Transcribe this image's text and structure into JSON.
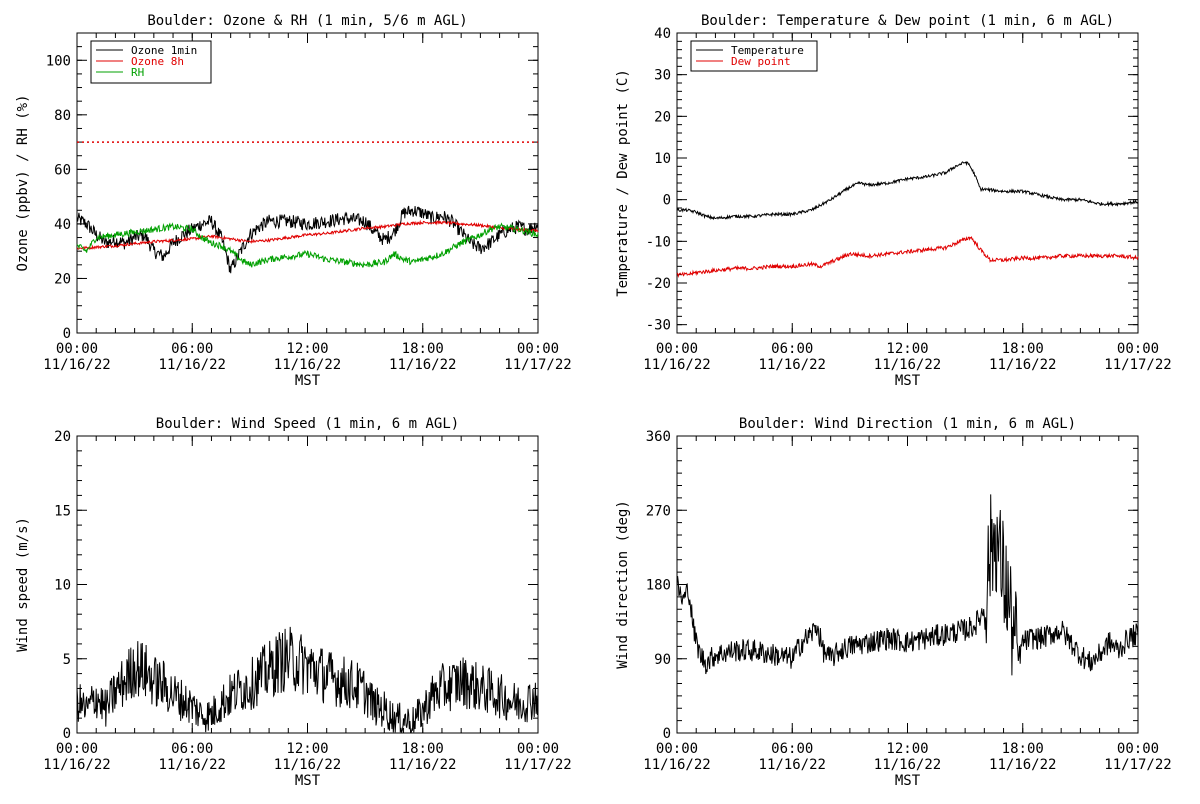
{
  "chart_data": [
    {
      "id": "ozone",
      "type": "line",
      "title": "Boulder: Ozone & RH (1 min, 5/6 m AGL)",
      "xlabel": "MST",
      "ylabel": "Ozone (ppbv) / RH (%)",
      "xlim": [
        0,
        24
      ],
      "ylim": [
        0,
        110
      ],
      "x_ticks": [
        {
          "value": 0,
          "time": "00:00",
          "date": "11/16/22"
        },
        {
          "value": 6,
          "time": "06:00",
          "date": "11/16/22"
        },
        {
          "value": 12,
          "time": "12:00",
          "date": "11/16/22"
        },
        {
          "value": 18,
          "time": "18:00",
          "date": "11/16/22"
        },
        {
          "value": 24,
          "time": "00:00",
          "date": "11/17/22"
        }
      ],
      "y_ticks": [
        0,
        20,
        40,
        60,
        80,
        100
      ],
      "y_minor_step": 5,
      "legend_position": "top-left",
      "hline": {
        "value": 70,
        "color": "#e00000",
        "style": "dotted"
      },
      "series": [
        {
          "name": "Ozone 1min",
          "color": "#000000",
          "x": [
            0,
            0.5,
            1,
            1.5,
            2,
            2.5,
            3,
            3.5,
            4,
            4.5,
            5,
            5.5,
            6,
            6.5,
            7,
            7.5,
            7.8,
            8,
            8.3,
            8.6,
            9,
            9.5,
            10,
            11,
            12,
            13,
            14,
            15,
            15.5,
            16,
            16.5,
            17,
            17.5,
            18,
            18.5,
            19,
            19.5,
            20,
            20.5,
            21,
            21.5,
            22,
            22.5,
            23,
            23.5,
            24
          ],
          "y": [
            42,
            40,
            36,
            33,
            34,
            33,
            35,
            36,
            30,
            28,
            33,
            36,
            38,
            40,
            41,
            35,
            28,
            23,
            27,
            31,
            36,
            39,
            41,
            41,
            40,
            41,
            42,
            41,
            37,
            34,
            37,
            44,
            45,
            44,
            42,
            43,
            41,
            37,
            33,
            31,
            33,
            36,
            38,
            39,
            38,
            40
          ]
        },
        {
          "name": "Ozone 8h",
          "color": "#e00000",
          "x": [
            0,
            2,
            4,
            6,
            7,
            8,
            9,
            10,
            11,
            12,
            13,
            14,
            15,
            16,
            17,
            18,
            19,
            20,
            21,
            22,
            23,
            24
          ],
          "y": [
            31,
            32,
            33.5,
            34.5,
            35.5,
            34.5,
            33.5,
            34,
            35,
            36,
            36.5,
            37.5,
            38.5,
            39,
            40,
            40.5,
            40.5,
            40,
            39.5,
            38.5,
            38,
            37.5
          ]
        },
        {
          "name": "RH",
          "color": "#00a000",
          "x": [
            0,
            0.5,
            1,
            2,
            3,
            4,
            5,
            6,
            6.5,
            7,
            7.5,
            8,
            8.5,
            9,
            10,
            11,
            12,
            13,
            14,
            15,
            16,
            16.5,
            17,
            17.5,
            18,
            19,
            20,
            21,
            21.5,
            22,
            23,
            24
          ],
          "y": [
            32,
            30,
            35,
            36,
            37,
            38,
            39,
            38,
            35,
            33,
            32,
            30,
            27,
            25,
            27,
            28,
            29,
            27,
            26,
            25,
            26,
            29,
            27,
            26,
            27,
            29,
            33,
            36,
            38,
            39,
            38,
            36
          ]
        }
      ]
    },
    {
      "id": "temperature",
      "type": "line",
      "title": "Boulder: Temperature & Dew point (1 min, 6 m AGL)",
      "xlabel": "MST",
      "ylabel": "Temperature / Dew point (C)",
      "xlim": [
        0,
        24
      ],
      "ylim": [
        -32,
        40
      ],
      "x_ticks": [
        {
          "value": 0,
          "time": "00:00",
          "date": "11/16/22"
        },
        {
          "value": 6,
          "time": "06:00",
          "date": "11/16/22"
        },
        {
          "value": 12,
          "time": "12:00",
          "date": "11/16/22"
        },
        {
          "value": 18,
          "time": "18:00",
          "date": "11/16/22"
        },
        {
          "value": 24,
          "time": "00:00",
          "date": "11/17/22"
        }
      ],
      "y_ticks": [
        -30,
        -20,
        -10,
        0,
        10,
        20,
        30,
        40
      ],
      "y_minor_step": 2,
      "legend_position": "top-left",
      "series": [
        {
          "name": "Temperature",
          "color": "#000000",
          "x": [
            0,
            0.5,
            1,
            1.5,
            2,
            3,
            4,
            5,
            6,
            7,
            8,
            9,
            9.5,
            10,
            11,
            12,
            13,
            14,
            14.5,
            15,
            15.2,
            15.5,
            15.8,
            16,
            17,
            18,
            19,
            20,
            21,
            22,
            23,
            24
          ],
          "y": [
            -2.5,
            -2.5,
            -3,
            -4,
            -4.5,
            -4,
            -4,
            -3.5,
            -3.5,
            -2.5,
            0,
            3,
            4,
            3.5,
            4,
            5,
            5.5,
            6.5,
            8,
            9,
            8.5,
            6,
            2.5,
            2.5,
            2,
            2,
            1,
            0,
            0,
            -1,
            -1,
            -0.5
          ]
        },
        {
          "name": "Dew point",
          "color": "#e00000",
          "x": [
            0,
            0.5,
            1,
            2,
            3,
            4,
            5,
            6,
            7,
            7.5,
            8,
            9,
            10,
            11,
            12,
            13,
            14,
            15,
            15.3,
            15.8,
            16.3,
            17,
            18,
            19,
            20,
            21,
            22,
            23,
            24
          ],
          "y": [
            -18,
            -18,
            -17.5,
            -17,
            -16.5,
            -16.5,
            -16,
            -16,
            -15.5,
            -16,
            -15,
            -13,
            -13.5,
            -13,
            -12.5,
            -12,
            -11.5,
            -9.5,
            -9,
            -12,
            -14.5,
            -14.5,
            -14,
            -14,
            -13.5,
            -13.5,
            -13.5,
            -13.5,
            -14
          ]
        }
      ]
    },
    {
      "id": "windspeed",
      "type": "line",
      "title": "Boulder: Wind Speed (1 min, 6 m AGL)",
      "xlabel": "MST",
      "ylabel": "Wind speed (m/s)",
      "xlim": [
        0,
        24
      ],
      "ylim": [
        0,
        20
      ],
      "x_ticks": [
        {
          "value": 0,
          "time": "00:00",
          "date": "11/16/22"
        },
        {
          "value": 6,
          "time": "06:00",
          "date": "11/16/22"
        },
        {
          "value": 12,
          "time": "12:00",
          "date": "11/16/22"
        },
        {
          "value": 18,
          "time": "18:00",
          "date": "11/16/22"
        },
        {
          "value": 24,
          "time": "00:00",
          "date": "11/17/22"
        }
      ],
      "y_ticks": [
        0,
        5,
        10,
        15,
        20
      ],
      "y_minor_step": 1,
      "legend_position": "none",
      "series": [
        {
          "name": "",
          "color": "#000000",
          "x": [
            0,
            0.5,
            1,
            1.5,
            2,
            2.5,
            3,
            3.5,
            4,
            4.5,
            5,
            5.5,
            6,
            6.5,
            7,
            7.5,
            8,
            8.5,
            9,
            9.5,
            10,
            10.5,
            11,
            11.5,
            12,
            12.5,
            13,
            13.5,
            14,
            14.5,
            15,
            15.5,
            16,
            16.5,
            17,
            17.5,
            18,
            18.5,
            19,
            19.5,
            20,
            20.5,
            21,
            21.5,
            22,
            22.5,
            23,
            23.5,
            24
          ],
          "y": [
            2.2,
            1.5,
            2.5,
            1.6,
            2.8,
            3.5,
            4.5,
            4.2,
            3.5,
            3.2,
            2.6,
            2.2,
            1.8,
            1.2,
            1.2,
            2.0,
            2.5,
            3.0,
            3.2,
            3.8,
            4.2,
            4.8,
            5.0,
            4.8,
            4.5,
            4.2,
            3.8,
            3.6,
            3.4,
            3.2,
            2.8,
            1.8,
            1.6,
            1.0,
            0.9,
            0.8,
            1.5,
            2.5,
            3.0,
            3.2,
            3.5,
            3.3,
            3.0,
            2.8,
            2.5,
            2.2,
            2.0,
            2.2,
            2.5
          ]
        }
      ]
    },
    {
      "id": "winddir",
      "type": "line",
      "title": "Boulder: Wind Direction (1 min, 6 m AGL)",
      "xlabel": "MST",
      "ylabel": "Wind direction (deg)",
      "xlim": [
        0,
        24
      ],
      "ylim": [
        0,
        360
      ],
      "x_ticks": [
        {
          "value": 0,
          "time": "00:00",
          "date": "11/16/22"
        },
        {
          "value": 6,
          "time": "06:00",
          "date": "11/16/22"
        },
        {
          "value": 12,
          "time": "12:00",
          "date": "11/16/22"
        },
        {
          "value": 18,
          "time": "18:00",
          "date": "11/16/22"
        },
        {
          "value": 24,
          "time": "00:00",
          "date": "11/17/22"
        }
      ],
      "y_ticks": [
        0,
        90,
        180,
        270,
        360
      ],
      "y_minor_step": 15,
      "legend_position": "none",
      "series": [
        {
          "name": "",
          "color": "#000000",
          "x": [
            0,
            0.3,
            0.6,
            0.9,
            1.2,
            1.5,
            2,
            3,
            4,
            5,
            6,
            6.5,
            7,
            7.3,
            7.6,
            8,
            8.5,
            9,
            10,
            11,
            12,
            13,
            14,
            15,
            15.5,
            16,
            16.3,
            16.6,
            16.9,
            17.2,
            17.5,
            17.8,
            18,
            18.5,
            19,
            19.5,
            20,
            20.5,
            21,
            21.5,
            22,
            22.5,
            23,
            23.5,
            24
          ],
          "y": [
            180,
            160,
            175,
            120,
            95,
            85,
            95,
            100,
            100,
            95,
            90,
            110,
            120,
            130,
            100,
            90,
            100,
            105,
            110,
            115,
            110,
            115,
            120,
            125,
            130,
            150,
            220,
            240,
            200,
            170,
            120,
            90,
            110,
            115,
            115,
            120,
            125,
            110,
            95,
            85,
            95,
            110,
            100,
            115,
            120
          ]
        }
      ]
    }
  ]
}
